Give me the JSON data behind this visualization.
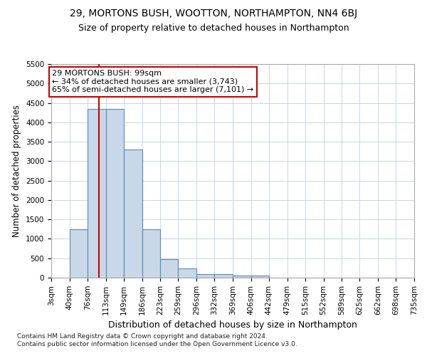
{
  "title1": "29, MORTONS BUSH, WOOTTON, NORTHAMPTON, NN4 6BJ",
  "title2": "Size of property relative to detached houses in Northampton",
  "xlabel": "Distribution of detached houses by size in Northampton",
  "ylabel": "Number of detached properties",
  "footnote": "Contains HM Land Registry data © Crown copyright and database right 2024.\nContains public sector information licensed under the Open Government Licence v3.0.",
  "bin_edges": [
    3,
    40,
    76,
    113,
    149,
    186,
    223,
    259,
    296,
    332,
    369,
    406,
    442,
    479,
    515,
    552,
    589,
    625,
    662,
    698,
    735
  ],
  "bar_heights": [
    0,
    1250,
    4350,
    4350,
    3300,
    1250,
    480,
    240,
    100,
    100,
    50,
    50,
    0,
    0,
    0,
    0,
    0,
    0,
    0,
    0
  ],
  "bar_color": "#c8d8e8",
  "bar_edge_color": "#5a8ab0",
  "property_size": 99,
  "red_line_color": "#cc0000",
  "annotation_line1": "29 MORTONS BUSH: 99sqm",
  "annotation_line2": "← 34% of detached houses are smaller (3,743)",
  "annotation_line3": "65% of semi-detached houses are larger (7,101) →",
  "annotation_box_color": "#ffffff",
  "annotation_box_edge_color": "#cc0000",
  "ylim": [
    0,
    5500
  ],
  "yticks": [
    0,
    500,
    1000,
    1500,
    2000,
    2500,
    3000,
    3500,
    4000,
    4500,
    5000,
    5500
  ],
  "background_color": "#ffffff",
  "grid_color": "#c0d0e0",
  "title1_fontsize": 10,
  "title2_fontsize": 9,
  "tick_label_fontsize": 7.5,
  "ylabel_fontsize": 8.5,
  "xlabel_fontsize": 9,
  "annotation_fontsize": 8,
  "footnote_fontsize": 6.5
}
